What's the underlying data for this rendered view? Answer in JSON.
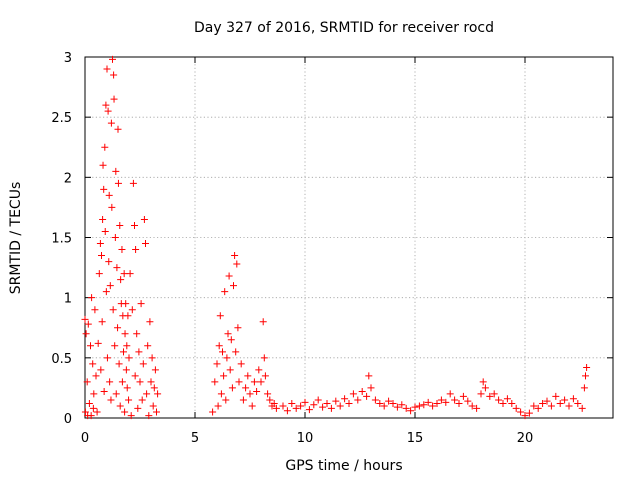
{
  "chart_data": {
    "type": "scatter",
    "title": "Day 327 of 2016, SRMTID for receiver rocd",
    "xlabel": "GPS time / hours",
    "ylabel": "SRMTID / TECUs",
    "xlim": [
      0,
      24
    ],
    "ylim": [
      0,
      3
    ],
    "x_ticks": [
      0,
      5,
      10,
      15,
      20
    ],
    "x_tick_labels": [
      "0",
      "5",
      "10",
      "15",
      "20"
    ],
    "y_ticks": [
      0,
      0.5,
      1,
      1.5,
      2,
      2.5,
      3
    ],
    "y_tick_labels": [
      "0",
      "0.5",
      "1",
      "1.5",
      "2",
      "2.5",
      "3"
    ],
    "grid": true,
    "marker": "+",
    "color": "#ff0000",
    "series": [
      {
        "name": "SRMTID",
        "points": [
          [
            0.0,
            0.82
          ],
          [
            0.02,
            0.05
          ],
          [
            0.05,
            0.7
          ],
          [
            0.1,
            0.3
          ],
          [
            0.12,
            0.02
          ],
          [
            0.15,
            0.78
          ],
          [
            0.2,
            0.12
          ],
          [
            0.25,
            0.6
          ],
          [
            0.28,
            0.02
          ],
          [
            0.3,
            1.0
          ],
          [
            0.35,
            0.45
          ],
          [
            0.38,
            0.08
          ],
          [
            0.4,
            0.2
          ],
          [
            0.45,
            0.9
          ],
          [
            0.5,
            0.35
          ],
          [
            0.55,
            0.05
          ],
          [
            0.6,
            0.62
          ],
          [
            0.65,
            1.2
          ],
          [
            0.7,
            1.45
          ],
          [
            0.72,
            0.4
          ],
          [
            0.75,
            1.35
          ],
          [
            0.78,
            0.8
          ],
          [
            0.8,
            1.65
          ],
          [
            0.82,
            2.1
          ],
          [
            0.85,
            1.9
          ],
          [
            0.87,
            0.22
          ],
          [
            0.9,
            2.25
          ],
          [
            0.92,
            1.55
          ],
          [
            0.95,
            2.6
          ],
          [
            0.97,
            1.05
          ],
          [
            1.0,
            2.9
          ],
          [
            1.02,
            0.5
          ],
          [
            1.05,
            2.55
          ],
          [
            1.08,
            1.3
          ],
          [
            1.1,
            1.85
          ],
          [
            1.12,
            0.3
          ],
          [
            1.15,
            1.1
          ],
          [
            1.18,
            0.15
          ],
          [
            1.2,
            2.45
          ],
          [
            1.22,
            1.75
          ],
          [
            1.25,
            2.98
          ],
          [
            1.28,
            0.9
          ],
          [
            1.3,
            2.85
          ],
          [
            1.32,
            2.65
          ],
          [
            1.35,
            0.6
          ],
          [
            1.38,
            1.5
          ],
          [
            1.4,
            2.05
          ],
          [
            1.42,
            0.2
          ],
          [
            1.45,
            1.25
          ],
          [
            1.48,
            0.75
          ],
          [
            1.5,
            2.4
          ],
          [
            1.52,
            1.95
          ],
          [
            1.55,
            0.45
          ],
          [
            1.58,
            1.6
          ],
          [
            1.6,
            0.1
          ],
          [
            1.62,
            1.15
          ],
          [
            1.65,
            0.95
          ],
          [
            1.68,
            1.4
          ],
          [
            1.7,
            0.3
          ],
          [
            1.72,
            0.85
          ],
          [
            1.75,
            0.55
          ],
          [
            1.78,
            1.2
          ],
          [
            1.8,
            0.05
          ],
          [
            1.82,
            0.7
          ],
          [
            1.85,
            0.95
          ],
          [
            1.88,
            0.4
          ],
          [
            1.9,
            0.6
          ],
          [
            1.92,
            0.25
          ],
          [
            1.95,
            0.85
          ],
          [
            1.98,
            0.15
          ],
          [
            2.0,
            0.5
          ],
          [
            2.05,
            1.2
          ],
          [
            2.1,
            0.02
          ],
          [
            2.15,
            0.9
          ],
          [
            2.2,
            1.95
          ],
          [
            2.25,
            1.6
          ],
          [
            2.28,
            0.35
          ],
          [
            2.3,
            1.4
          ],
          [
            2.35,
            0.7
          ],
          [
            2.4,
            0.08
          ],
          [
            2.45,
            0.55
          ],
          [
            2.5,
            0.3
          ],
          [
            2.55,
            0.95
          ],
          [
            2.6,
            0.15
          ],
          [
            2.65,
            0.45
          ],
          [
            2.7,
            1.65
          ],
          [
            2.75,
            1.45
          ],
          [
            2.8,
            0.2
          ],
          [
            2.85,
            0.6
          ],
          [
            2.9,
            0.02
          ],
          [
            2.95,
            0.8
          ],
          [
            3.0,
            0.3
          ],
          [
            3.05,
            0.5
          ],
          [
            3.1,
            0.1
          ],
          [
            3.15,
            0.25
          ],
          [
            3.2,
            0.4
          ],
          [
            3.25,
            0.05
          ],
          [
            3.3,
            0.2
          ],
          [
            5.8,
            0.05
          ],
          [
            5.9,
            0.3
          ],
          [
            6.0,
            0.45
          ],
          [
            6.05,
            0.1
          ],
          [
            6.1,
            0.6
          ],
          [
            6.15,
            0.85
          ],
          [
            6.2,
            0.2
          ],
          [
            6.25,
            0.55
          ],
          [
            6.3,
            0.35
          ],
          [
            6.35,
            1.05
          ],
          [
            6.4,
            0.15
          ],
          [
            6.45,
            0.5
          ],
          [
            6.5,
            0.7
          ],
          [
            6.55,
            1.18
          ],
          [
            6.6,
            0.4
          ],
          [
            6.65,
            0.65
          ],
          [
            6.7,
            0.25
          ],
          [
            6.75,
            1.1
          ],
          [
            6.8,
            1.35
          ],
          [
            6.85,
            0.55
          ],
          [
            6.9,
            1.28
          ],
          [
            6.95,
            0.75
          ],
          [
            7.0,
            0.3
          ],
          [
            7.1,
            0.45
          ],
          [
            7.2,
            0.15
          ],
          [
            7.3,
            0.25
          ],
          [
            7.4,
            0.35
          ],
          [
            7.5,
            0.2
          ],
          [
            7.6,
            0.1
          ],
          [
            7.7,
            0.3
          ],
          [
            7.8,
            0.22
          ],
          [
            7.9,
            0.4
          ],
          [
            8.0,
            0.3
          ],
          [
            8.1,
            0.8
          ],
          [
            8.15,
            0.5
          ],
          [
            8.2,
            0.35
          ],
          [
            8.3,
            0.2
          ],
          [
            8.4,
            0.15
          ],
          [
            8.5,
            0.1
          ],
          [
            8.6,
            0.12
          ],
          [
            8.7,
            0.08
          ],
          [
            9.0,
            0.1
          ],
          [
            9.2,
            0.06
          ],
          [
            9.4,
            0.12
          ],
          [
            9.6,
            0.08
          ],
          [
            9.8,
            0.1
          ],
          [
            10.0,
            0.13
          ],
          [
            10.2,
            0.07
          ],
          [
            10.4,
            0.11
          ],
          [
            10.6,
            0.15
          ],
          [
            10.8,
            0.09
          ],
          [
            11.0,
            0.12
          ],
          [
            11.2,
            0.08
          ],
          [
            11.4,
            0.14
          ],
          [
            11.6,
            0.1
          ],
          [
            11.8,
            0.16
          ],
          [
            12.0,
            0.12
          ],
          [
            12.2,
            0.2
          ],
          [
            12.4,
            0.15
          ],
          [
            12.6,
            0.22
          ],
          [
            12.8,
            0.18
          ],
          [
            12.9,
            0.35
          ],
          [
            13.0,
            0.25
          ],
          [
            13.2,
            0.15
          ],
          [
            13.4,
            0.12
          ],
          [
            13.6,
            0.1
          ],
          [
            13.8,
            0.14
          ],
          [
            14.0,
            0.12
          ],
          [
            14.2,
            0.09
          ],
          [
            14.4,
            0.11
          ],
          [
            14.6,
            0.08
          ],
          [
            14.8,
            0.06
          ],
          [
            15.0,
            0.09
          ],
          [
            15.2,
            0.1
          ],
          [
            15.4,
            0.11
          ],
          [
            15.6,
            0.13
          ],
          [
            15.8,
            0.1
          ],
          [
            16.0,
            0.12
          ],
          [
            16.2,
            0.15
          ],
          [
            16.4,
            0.13
          ],
          [
            16.6,
            0.2
          ],
          [
            16.8,
            0.15
          ],
          [
            17.0,
            0.12
          ],
          [
            17.2,
            0.18
          ],
          [
            17.4,
            0.14
          ],
          [
            17.6,
            0.1
          ],
          [
            17.8,
            0.08
          ],
          [
            18.0,
            0.2
          ],
          [
            18.1,
            0.3
          ],
          [
            18.2,
            0.25
          ],
          [
            18.4,
            0.18
          ],
          [
            18.6,
            0.2
          ],
          [
            18.8,
            0.15
          ],
          [
            19.0,
            0.12
          ],
          [
            19.2,
            0.16
          ],
          [
            19.4,
            0.12
          ],
          [
            19.6,
            0.08
          ],
          [
            19.8,
            0.05
          ],
          [
            20.0,
            0.02
          ],
          [
            20.2,
            0.04
          ],
          [
            20.4,
            0.1
          ],
          [
            20.6,
            0.08
          ],
          [
            20.8,
            0.12
          ],
          [
            21.0,
            0.14
          ],
          [
            21.2,
            0.1
          ],
          [
            21.4,
            0.18
          ],
          [
            21.6,
            0.12
          ],
          [
            21.8,
            0.15
          ],
          [
            22.0,
            0.1
          ],
          [
            22.2,
            0.16
          ],
          [
            22.4,
            0.12
          ],
          [
            22.6,
            0.08
          ],
          [
            22.7,
            0.25
          ],
          [
            22.75,
            0.35
          ],
          [
            22.8,
            0.42
          ]
        ]
      }
    ]
  }
}
